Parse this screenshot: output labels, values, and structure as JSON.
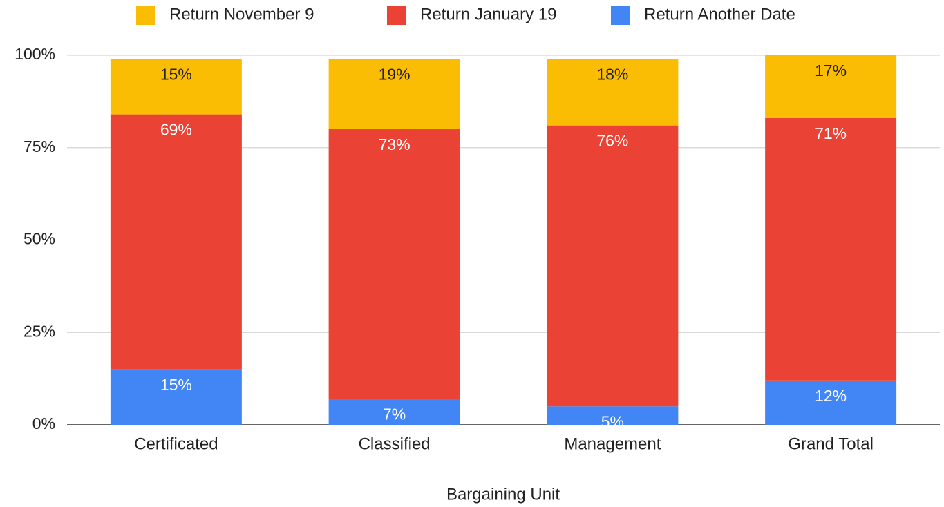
{
  "chart_data": {
    "type": "stacked_bar",
    "x_label": "Bargaining Unit",
    "categories": [
      "Certificated",
      "Classified",
      "Management",
      "Grand Total"
    ],
    "series": [
      {
        "name": "Return Another Date",
        "color": "#4285f4",
        "label_color": "#ffffff",
        "values": [
          15,
          7,
          5,
          12
        ],
        "value_labels": [
          "15%",
          "7%",
          "5%",
          "12%"
        ]
      },
      {
        "name": "Return January 19",
        "color": "#ea4335",
        "label_color": "#ffffff",
        "values": [
          69,
          73,
          76,
          71
        ],
        "value_labels": [
          "69%",
          "73%",
          "76%",
          "71%"
        ]
      },
      {
        "name": "Return November 9",
        "color": "#fbbc04",
        "label_color": "#222222",
        "values": [
          15,
          19,
          18,
          17
        ],
        "value_labels": [
          "15%",
          "19%",
          "18%",
          "17%"
        ]
      }
    ],
    "legend_order": [
      2,
      1,
      0
    ],
    "ylim": [
      0,
      100
    ],
    "yticks": [
      {
        "value": 0,
        "label": "0%"
      },
      {
        "value": 25,
        "label": "25%"
      },
      {
        "value": 50,
        "label": "50%"
      },
      {
        "value": 75,
        "label": "75%"
      },
      {
        "value": 100,
        "label": "100%"
      }
    ],
    "grid": true
  }
}
